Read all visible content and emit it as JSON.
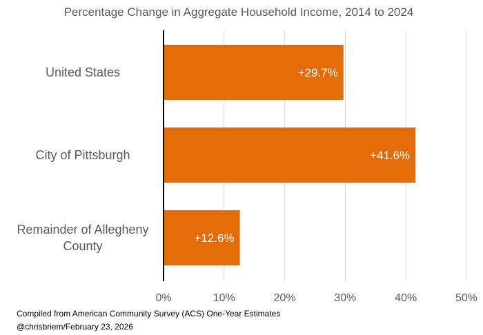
{
  "chart_data": {
    "type": "bar",
    "orientation": "horizontal",
    "title": "Percentage Change in Aggregate Household Income, 2014  to 2024",
    "categories": [
      [
        "United States"
      ],
      [
        "City of Pittsburgh"
      ],
      [
        "Remainder of Allegheny",
        "County"
      ]
    ],
    "values": [
      29.7,
      41.6,
      12.6
    ],
    "value_labels": [
      "+29.7%",
      "+41.6%",
      "+12.6%"
    ],
    "xlim": [
      0,
      50
    ],
    "xticks": [
      0,
      10,
      20,
      30,
      40,
      50
    ],
    "xtick_labels": [
      "0%",
      "10%",
      "20%",
      "30%",
      "40%",
      "50%"
    ],
    "xlabel": "",
    "ylabel": "",
    "grid": true,
    "legend": "none",
    "bar_color": "#E36C09",
    "grid_color": "#D9D9D9",
    "axis_color": "#000000"
  },
  "footnotes": {
    "source": "Compiled from American Community Survey (ACS) One-Year Estimates",
    "credit": "@chrisbriem/February 23, 2026"
  }
}
